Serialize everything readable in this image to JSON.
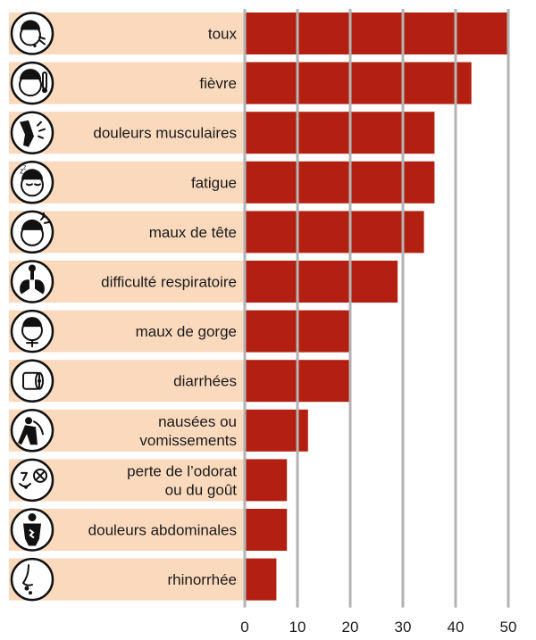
{
  "chart_data": {
    "type": "bar",
    "orientation": "horizontal",
    "categories": [
      "toux",
      "fièvre",
      "douleurs musculaires",
      "fatigue",
      "maux de tête",
      "difficulté respiratoire",
      "maux de gorge",
      "diarrhées",
      "nausées ou vomissements",
      "perte de l’odorat ou du goût",
      "douleurs abdominales",
      "rhinorrhée"
    ],
    "category_lines": [
      [
        "toux"
      ],
      [
        "fièvre"
      ],
      [
        "douleurs musculaires"
      ],
      [
        "fatigue"
      ],
      [
        "maux de tête"
      ],
      [
        "difficulté respiratoire"
      ],
      [
        "maux de gorge"
      ],
      [
        "diarrhées"
      ],
      [
        "nausées ou",
        "vomissements"
      ],
      [
        "perte de l’odorat",
        "ou du goût"
      ],
      [
        "douleurs abdominales"
      ],
      [
        "rhinorrhée"
      ]
    ],
    "icons": [
      "coughing-face-icon",
      "fever-thermometer-face-icon",
      "muscle-pain-leg-icon",
      "sleepy-face-icon",
      "headache-face-icon",
      "lungs-breathing-icon",
      "sore-throat-face-icon",
      "toilet-paper-icon",
      "vomiting-person-icon",
      "loss-of-smell-taste-icon",
      "abdominal-pain-icon",
      "runny-nose-icon"
    ],
    "values": [
      50,
      43,
      36,
      36,
      34,
      29,
      20,
      20,
      12,
      8,
      8,
      6
    ],
    "xlim": [
      0,
      50
    ],
    "xticks": [
      0,
      10,
      20,
      30,
      40,
      50
    ],
    "title": "",
    "xlabel": "",
    "ylabel": "",
    "grid": "vertical",
    "legend": "none",
    "colors": {
      "bar": "#b32012",
      "label_band": "#fad9bd",
      "grid": "#b3b3b3",
      "icon_ink": "#111111"
    }
  }
}
